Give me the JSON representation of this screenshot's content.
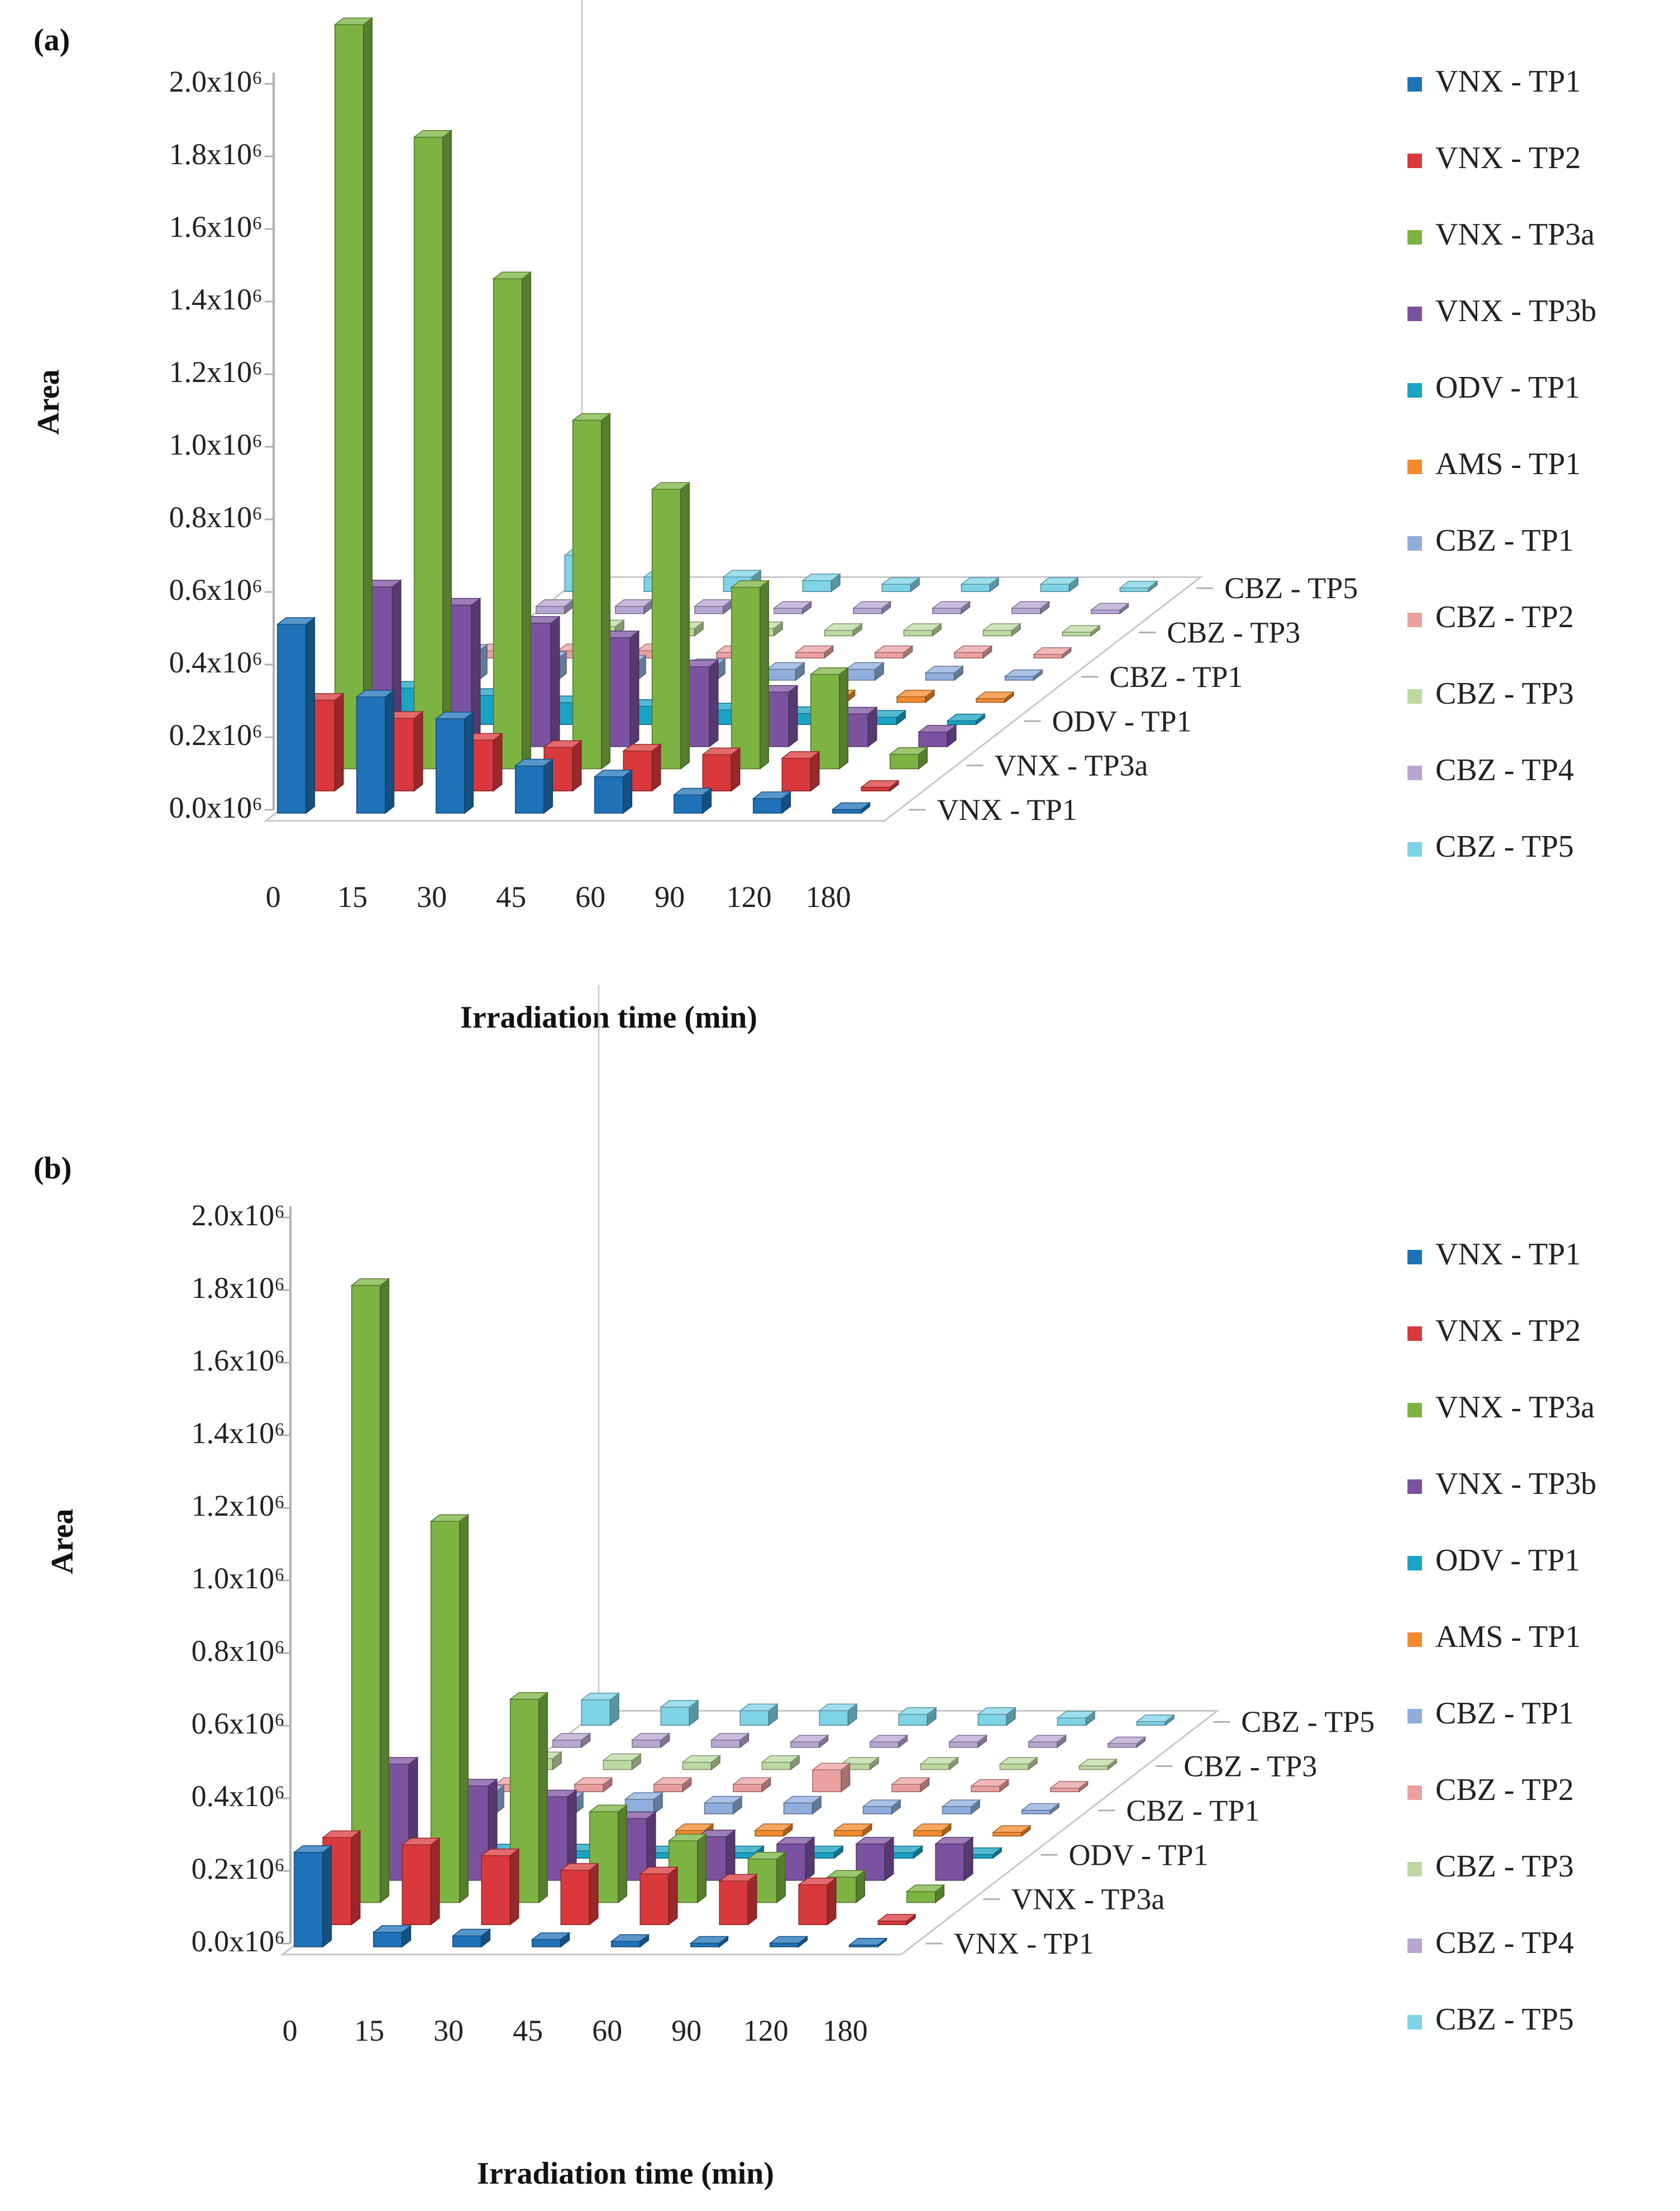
{
  "legend_entries": [
    "VNX - TP1",
    "VNX - TP2",
    "VNX - TP3a",
    "VNX - TP3b",
    "ODV - TP1",
    "AMS - TP1",
    "CBZ - TP1",
    "CBZ - TP2",
    "CBZ - TP3",
    "CBZ - TP4",
    "CBZ - TP5"
  ],
  "colors": {
    "VNX - TP1": "#1f72b8",
    "VNX - TP2": "#d9393c",
    "VNX - TP3a": "#7cb342",
    "VNX - TP3b": "#7b52a0",
    "ODV - TP1": "#1aa3c3",
    "AMS - TP1": "#f28a2e",
    "CBZ - TP1": "#8faedd",
    "CBZ - TP2": "#eba0a0",
    "CBZ - TP3": "#bcd9a2",
    "CBZ - TP4": "#b7a6d2",
    "CBZ - TP5": "#7fd3e6"
  },
  "chart_data": [
    {
      "panel": "(a)",
      "type": "bar3d",
      "title": "",
      "xlabel": "Irradiation time (min)",
      "ylabel": "Area",
      "categories": [
        "0",
        "15",
        "30",
        "45",
        "60",
        "90",
        "120",
        "180"
      ],
      "depth_tick_labels": [
        "VNX - TP1",
        "VNX - TP3a",
        "ODV - TP1",
        "CBZ - TP1",
        "CBZ - TP3",
        "CBZ - TP5"
      ],
      "y_tick_labels": [
        "0.0x10⁶",
        "0.2x10⁶",
        "0.4x10⁶",
        "0.6x10⁶",
        "0.8x10⁶",
        "1.0x10⁶",
        "1.2x10⁶",
        "1.4x10⁶",
        "1.6x10⁶",
        "1.8x10⁶",
        "2.0x10⁶"
      ],
      "ylim": [
        0,
        2000000
      ],
      "series": [
        {
          "name": "VNX - TP1",
          "values": [
            520000,
            320000,
            260000,
            130000,
            100000,
            50000,
            40000,
            10000
          ]
        },
        {
          "name": "VNX - TP2",
          "values": [
            250000,
            200000,
            140000,
            120000,
            110000,
            100000,
            90000,
            10000
          ]
        },
        {
          "name": "VNX - TP3a",
          "values": [
            2050000,
            1740000,
            1350000,
            960000,
            770000,
            500000,
            260000,
            40000
          ]
        },
        {
          "name": "VNX - TP3b",
          "values": [
            440000,
            390000,
            340000,
            300000,
            220000,
            150000,
            90000,
            40000
          ]
        },
        {
          "name": "ODV - TP1",
          "values": [
            100000,
            80000,
            60000,
            50000,
            40000,
            30000,
            20000,
            10000
          ]
        },
        {
          "name": "AMS - TP1",
          "values": [
            20000,
            20000,
            20000,
            15000,
            15000,
            15000,
            15000,
            10000
          ]
        },
        {
          "name": "CBZ - TP1",
          "values": [
            80000,
            60000,
            50000,
            40000,
            30000,
            30000,
            20000,
            10000
          ]
        },
        {
          "name": "CBZ - TP2",
          "values": [
            20000,
            20000,
            20000,
            15000,
            15000,
            15000,
            15000,
            10000
          ]
        },
        {
          "name": "CBZ - TP3",
          "values": [
            30000,
            25000,
            20000,
            20000,
            15000,
            15000,
            15000,
            10000
          ]
        },
        {
          "name": "CBZ - TP4",
          "values": [
            20000,
            20000,
            20000,
            15000,
            15000,
            15000,
            15000,
            10000
          ]
        },
        {
          "name": "CBZ - TP5",
          "values": [
            100000,
            40000,
            40000,
            30000,
            20000,
            20000,
            20000,
            10000
          ]
        }
      ]
    },
    {
      "panel": "(b)",
      "type": "bar3d",
      "title": "",
      "xlabel": "Irradiation time (min)",
      "ylabel": "Area",
      "categories": [
        "0",
        "15",
        "30",
        "45",
        "60",
        "90",
        "120",
        "180"
      ],
      "depth_tick_labels": [
        "VNX - TP1",
        "VNX - TP3a",
        "ODV - TP1",
        "CBZ - TP1",
        "CBZ - TP3",
        "CBZ - TP5"
      ],
      "y_tick_labels": [
        "0.0x10⁶",
        "0.2x10⁶",
        "0.4x10⁶",
        "0.6x10⁶",
        "0.8x10⁶",
        "1.0x10⁶",
        "1.2x10⁶",
        "1.4x10⁶",
        "1.6x10⁶",
        "1.8x10⁶",
        "2.0x10⁶"
      ],
      "ylim": [
        0,
        2000000
      ],
      "series": [
        {
          "name": "VNX - TP1",
          "values": [
            260000,
            40000,
            30000,
            20000,
            15000,
            10000,
            10000,
            5000
          ]
        },
        {
          "name": "VNX - TP2",
          "values": [
            240000,
            220000,
            190000,
            150000,
            140000,
            120000,
            110000,
            10000
          ]
        },
        {
          "name": "VNX - TP3a",
          "values": [
            1700000,
            1050000,
            560000,
            250000,
            170000,
            120000,
            70000,
            30000
          ]
        },
        {
          "name": "VNX - TP3b",
          "values": [
            320000,
            260000,
            230000,
            170000,
            120000,
            100000,
            100000,
            100000
          ]
        },
        {
          "name": "ODV - TP1",
          "values": [
            30000,
            20000,
            20000,
            15000,
            15000,
            15000,
            15000,
            10000
          ]
        },
        {
          "name": "AMS - TP1",
          "values": [
            20000,
            20000,
            20000,
            15000,
            15000,
            15000,
            15000,
            10000
          ]
        },
        {
          "name": "CBZ - TP1",
          "values": [
            60000,
            40000,
            40000,
            30000,
            30000,
            20000,
            20000,
            10000
          ]
        },
        {
          "name": "CBZ - TP2",
          "values": [
            20000,
            20000,
            20000,
            20000,
            60000,
            20000,
            15000,
            10000
          ]
        },
        {
          "name": "CBZ - TP3",
          "values": [
            30000,
            25000,
            20000,
            20000,
            15000,
            15000,
            15000,
            10000
          ]
        },
        {
          "name": "CBZ - TP4",
          "values": [
            20000,
            20000,
            20000,
            15000,
            15000,
            15000,
            15000,
            10000
          ]
        },
        {
          "name": "CBZ - TP5",
          "values": [
            70000,
            50000,
            40000,
            40000,
            30000,
            30000,
            20000,
            10000
          ]
        }
      ]
    }
  ]
}
